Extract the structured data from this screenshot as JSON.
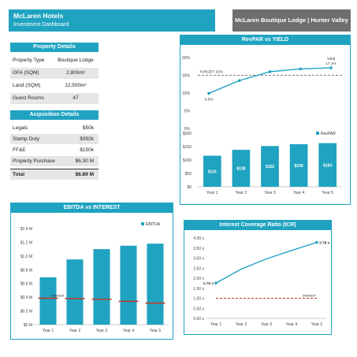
{
  "header": {
    "title": "McLaren Hotels",
    "subtitle": "Investment Dashboard",
    "property_name": "McLaren Boutique Lodge | Hunter Valley"
  },
  "property_details": {
    "title": "Property Details",
    "rows": [
      {
        "label": "Property Type",
        "value": "Boutique Lodge"
      },
      {
        "label": "GFA (SQM)",
        "value": "2,800m²"
      },
      {
        "label": "Land (SQM)",
        "value": "12,500m²"
      },
      {
        "label": "Guest Rooms",
        "value": "47"
      }
    ]
  },
  "acquisition_details": {
    "title": "Acquisition Details",
    "rows": [
      {
        "label": "Legals",
        "value": "$50k"
      },
      {
        "label": "Stamp Duty",
        "value": "$392k"
      },
      {
        "label": "FF&E",
        "value": "$150k"
      },
      {
        "label": "Property Purchase",
        "value": "$6.30 M"
      }
    ],
    "total_label": "Total",
    "total_value": "$6.89 M"
  },
  "colors": {
    "accent": "#1fa3c1",
    "header_gray": "#6e6e6e",
    "line_dark": "#1a9fbf",
    "target_red": "#c0392b"
  },
  "chart_data": [
    {
      "id": "revpar_yield",
      "title": "RevPAR vs YIELD",
      "type": "line",
      "x": [
        "Year 1",
        "Year 2",
        "Year 3",
        "Year 4",
        "Year 5"
      ],
      "series": [
        {
          "name": "Yield",
          "values": [
            9.9,
            13.5,
            16.0,
            16.8,
            17.1
          ]
        }
      ],
      "target": {
        "label": "TARGET 15%",
        "value": 15
      },
      "point_labels": {
        "first": "9.9%",
        "last": "17.1%"
      },
      "yticks": [
        "0%",
        "5%",
        "10%",
        "15%",
        "20%"
      ],
      "ylim": [
        0,
        20
      ]
    },
    {
      "id": "revpar",
      "title": "",
      "type": "bar",
      "categories": [
        "Year 1",
        "Year 2",
        "Year 3",
        "Year 4",
        "Year 5"
      ],
      "series": [
        {
          "name": "RevPAR",
          "values": [
            116,
            138,
            152,
            159,
            163
          ]
        }
      ],
      "value_labels": [
        "$116",
        "$138",
        "$152",
        "$159",
        "$163"
      ],
      "yticks": [
        "$0",
        "$50",
        "$100",
        "$150",
        "$200"
      ],
      "ylim": [
        0,
        200
      ],
      "legend": "top-right"
    },
    {
      "id": "ebitda_interest",
      "title": "EBITDA vs INTEREST",
      "type": "bar",
      "categories": [
        "Year 1",
        "Year 2",
        "Year 3",
        "Year 4",
        "Year 5"
      ],
      "series": [
        {
          "name": "EBITDA",
          "values": [
            0.69,
            0.95,
            1.1,
            1.15,
            1.18
          ]
        },
        {
          "name": "Interest",
          "values": [
            0.385,
            0.38,
            0.37,
            0.34,
            0.315
          ]
        }
      ],
      "interest_label": "Interest",
      "yticks": [
        "$0 M",
        "$0.2 M",
        "$0.4 M",
        "$0.6 M",
        "$0.8 M",
        "$1.0 M",
        "$1.2 M",
        "$1.4 M"
      ],
      "ylim": [
        0,
        1.4
      ],
      "legend": "top-right"
    },
    {
      "id": "icr",
      "title": "Interest Coverage Ratio (ICR)",
      "type": "line",
      "x": [
        "Year 1",
        "Year 2",
        "Year 3",
        "Year 4",
        "Year 5"
      ],
      "series": [
        {
          "name": "ICR",
          "values": [
            1.76,
            2.45,
            2.96,
            3.38,
            3.78
          ]
        },
        {
          "name": "Interest",
          "values": [
            1.0,
            1.0,
            1.0,
            1.0,
            1.0
          ]
        }
      ],
      "point_labels": {
        "first": "1.76 x",
        "last": "3.78 x"
      },
      "interest_label": "Interest",
      "yticks": [
        "0.00 x",
        "0.50 x",
        "1.00 x",
        "1.50 x",
        "2.00 x",
        "2.50 x",
        "3.00 x",
        "3.50 x",
        "4.00 x"
      ],
      "ylim": [
        0,
        4
      ]
    }
  ]
}
